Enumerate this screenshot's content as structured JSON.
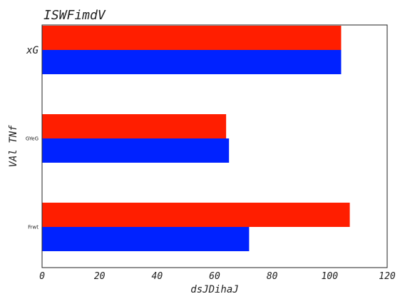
{
  "chart_data": {
    "type": "bar",
    "orientation": "horizontal",
    "title": "ISWFimdV",
    "xlabel": "dsJDihaJ",
    "ylabel": "VAl TNf",
    "categories": [
      "Frwt",
      "GYeG",
      "xG"
    ],
    "xlim": [
      0,
      120
    ],
    "xticks": [
      "0",
      "20",
      "40",
      "60",
      "80",
      "100",
      "120"
    ],
    "series": [
      {
        "color": "#0022ff",
        "values": [
          72,
          65,
          104
        ]
      },
      {
        "color": "#ff1e00",
        "values": [
          107,
          64,
          104
        ]
      }
    ],
    "grid": false,
    "legend": "none"
  }
}
